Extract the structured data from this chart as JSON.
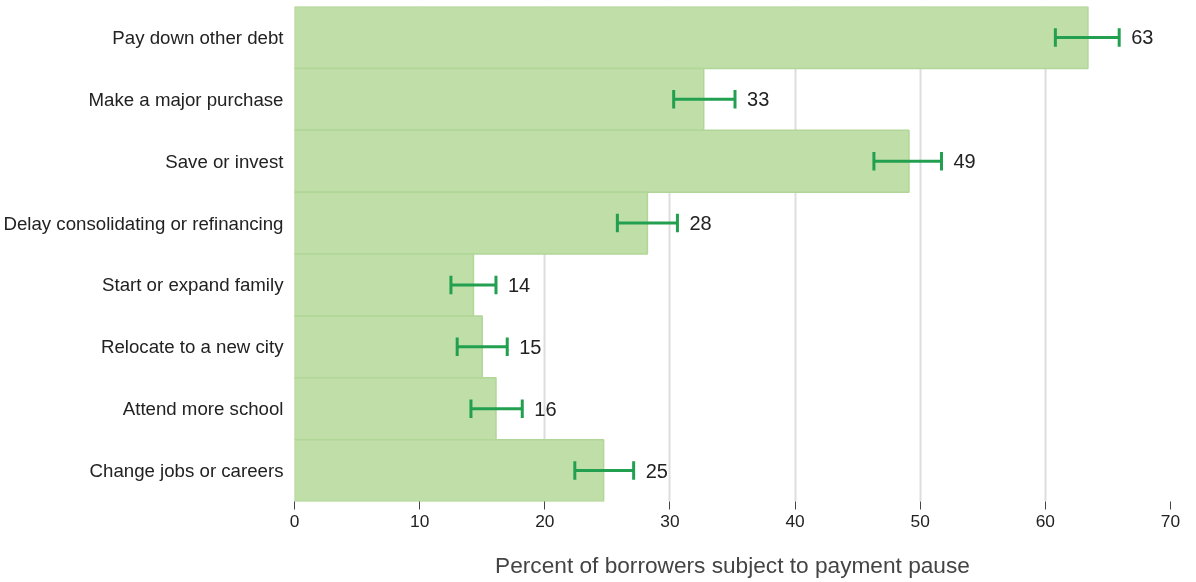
{
  "chart_data": {
    "type": "bar",
    "orientation": "horizontal",
    "xlabel": "Percent of borrowers subject to payment pause",
    "categories": [
      "Pay down other debt",
      "Make a major purchase",
      "Save or invest",
      "Delay consolidating or refinancing",
      "Start or expand family",
      "Relocate to a new city",
      "Attend more school",
      "Change jobs or careers"
    ],
    "values": [
      63.4,
      32.7,
      49.1,
      28.2,
      14.3,
      15.0,
      16.1,
      24.7
    ],
    "value_labels": [
      "63",
      "33",
      "49",
      "28",
      "14",
      "15",
      "16",
      "25"
    ],
    "errors": [
      [
        60.8,
        65.9
      ],
      [
        30.3,
        35.2
      ],
      [
        46.3,
        51.7
      ],
      [
        25.8,
        30.6
      ],
      [
        12.5,
        16.1
      ],
      [
        13.0,
        17.0
      ],
      [
        14.1,
        18.2
      ],
      [
        22.4,
        27.1
      ]
    ],
    "color": "#c0dea8",
    "xlim": [
      0,
      70
    ],
    "xticks": [
      0,
      10,
      20,
      30,
      40,
      50,
      60,
      70
    ],
    "grid": "x"
  }
}
